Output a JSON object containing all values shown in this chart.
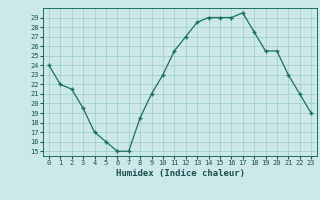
{
  "xlabel": "Humidex (Indice chaleur)",
  "ylabel": "",
  "x": [
    0,
    1,
    2,
    3,
    4,
    5,
    6,
    7,
    8,
    9,
    10,
    11,
    12,
    13,
    14,
    15,
    16,
    17,
    18,
    19,
    20,
    21,
    22,
    23
  ],
  "y": [
    24,
    22,
    21.5,
    19.5,
    17,
    16,
    15,
    15,
    18.5,
    21,
    23,
    25.5,
    27,
    28.5,
    29,
    29,
    29,
    29.5,
    27.5,
    25.5,
    25.5,
    23,
    21,
    19
  ],
  "ylim_min": 14.5,
  "ylim_max": 30.0,
  "xlim_min": -0.5,
  "xlim_max": 23.5,
  "yticks": [
    15,
    16,
    17,
    18,
    19,
    20,
    21,
    22,
    23,
    24,
    25,
    26,
    27,
    28,
    29
  ],
  "xticks": [
    0,
    1,
    2,
    3,
    4,
    5,
    6,
    7,
    8,
    9,
    10,
    11,
    12,
    13,
    14,
    15,
    16,
    17,
    18,
    19,
    20,
    21,
    22,
    23
  ],
  "line_color": "#1a7060",
  "marker": "+",
  "bg_color": "#cce8e8",
  "grid_color": "#99cccc",
  "tick_label_color": "#1a5050",
  "xlabel_color": "#1a5050"
}
